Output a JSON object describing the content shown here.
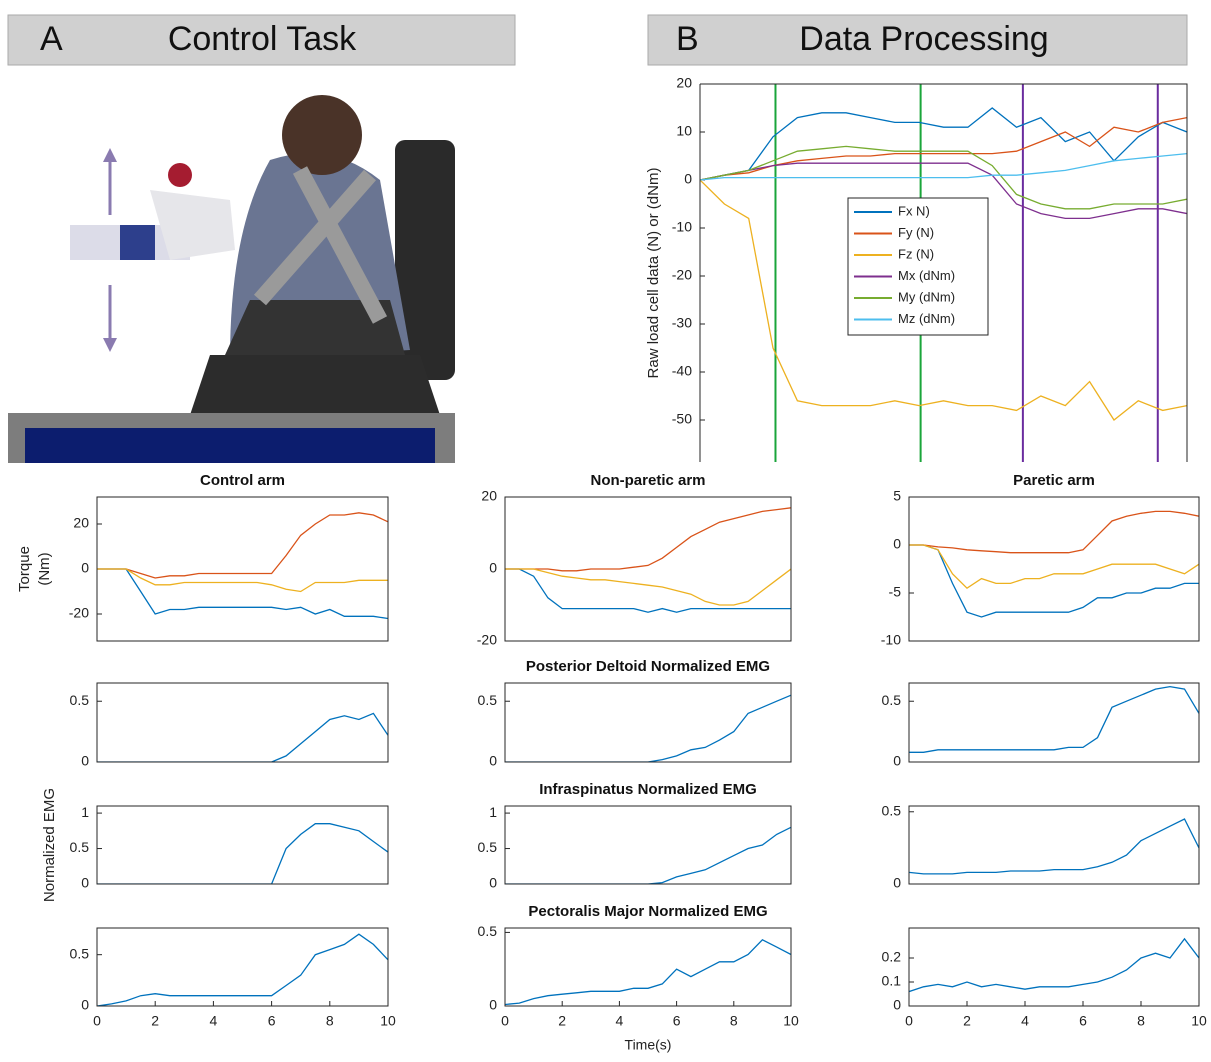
{
  "panels": [
    {
      "letter": "A",
      "title": "Control Task"
    },
    {
      "letter": "B",
      "title": "Data Processing"
    }
  ],
  "torque_ylabel": [
    "Torque",
    "(Nm)"
  ],
  "emg_ylabel": "Normalized EMG",
  "chart_data": [
    {
      "type": "line",
      "ylabel": "Raw load cell data (N) or (dNm)",
      "xlim": [
        0,
        10
      ],
      "ylim": [
        -58.75,
        20
      ],
      "yticks": [
        -50,
        -40,
        -30,
        -20,
        -10,
        0,
        10,
        20
      ],
      "legend": "center",
      "x": [
        0,
        0.5,
        1,
        1.5,
        2,
        2.5,
        3,
        3.5,
        4,
        4.5,
        5,
        5.5,
        6,
        6.5,
        7,
        7.5,
        8,
        8.5,
        9,
        9.5,
        10
      ],
      "vlines": [
        {
          "x": 1.55,
          "color": "#1aa53a"
        },
        {
          "x": 4.53,
          "color": "#1aa53a"
        },
        {
          "x": 6.63,
          "color": "#6a2c9e"
        },
        {
          "x": 9.4,
          "color": "#6a2c9e"
        }
      ],
      "series": [
        {
          "name": "Fx N)",
          "color": "#0072BD",
          "values": [
            0,
            1,
            2,
            9,
            13,
            14,
            14,
            13,
            12,
            12,
            11,
            11,
            15,
            11,
            13,
            8,
            10,
            4,
            9,
            12,
            10
          ]
        },
        {
          "name": "Fy (N)",
          "color": "#D95319",
          "values": [
            0,
            1,
            1.5,
            3,
            4,
            4.5,
            5,
            5,
            5.5,
            5.5,
            5.5,
            5.5,
            5.5,
            6,
            8,
            10,
            7,
            11,
            10,
            12,
            13
          ]
        },
        {
          "name": "Fz (N)",
          "color": "#EDB120",
          "values": [
            0,
            -5,
            -8,
            -35,
            -46,
            -47,
            -47,
            -47,
            -46,
            -47,
            -46,
            -47,
            -47,
            -48,
            -45,
            -47,
            -42,
            -50,
            -46,
            -48,
            -47
          ]
        },
        {
          "name": "Mx (dNm)",
          "color": "#7E2F8E",
          "values": [
            0,
            1,
            2,
            3,
            3.5,
            3.5,
            3.5,
            3.5,
            3.5,
            3.5,
            3.5,
            3.5,
            1,
            -5,
            -7,
            -8,
            -8,
            -7,
            -6,
            -6,
            -7
          ]
        },
        {
          "name": "My (dNm)",
          "color": "#77AC30",
          "values": [
            0,
            1,
            2,
            4,
            6,
            6.5,
            7,
            6.5,
            6,
            6,
            6,
            6,
            3,
            -3,
            -5,
            -6,
            -6,
            -5,
            -5,
            -5,
            -4
          ]
        },
        {
          "name": "Mz (dNm)",
          "color": "#4DBEEE",
          "values": [
            0,
            0.5,
            0.5,
            0.5,
            0.5,
            0.5,
            0.5,
            0.5,
            0.5,
            0.5,
            0.5,
            0.5,
            1,
            1,
            1.5,
            2,
            3,
            4,
            4.5,
            5,
            5.5
          ]
        }
      ]
    },
    {
      "type": "line",
      "title": "Control arm",
      "xlim": [
        0,
        10
      ],
      "ylim": [
        -32,
        32
      ],
      "yticks": [
        -20,
        0,
        20
      ],
      "x": [
        0,
        0.5,
        1,
        1.5,
        2,
        2.5,
        3,
        3.5,
        4,
        4.5,
        5,
        5.5,
        6,
        6.5,
        7,
        7.5,
        8,
        8.5,
        9,
        9.5,
        10
      ],
      "series": [
        {
          "color": "#0072BD",
          "values": [
            0,
            0,
            0,
            -10,
            -20,
            -18,
            -18,
            -17,
            -17,
            -17,
            -17,
            -17,
            -17,
            -18,
            -17,
            -20,
            -18,
            -21,
            -21,
            -21,
            -22
          ]
        },
        {
          "color": "#D95319",
          "values": [
            0,
            0,
            0,
            -2,
            -4,
            -3,
            -3,
            -2,
            -2,
            -2,
            -2,
            -2,
            -2,
            6,
            15,
            20,
            24,
            24,
            25,
            24,
            21
          ]
        },
        {
          "color": "#EDB120",
          "values": [
            0,
            0,
            0,
            -4,
            -7,
            -7,
            -6,
            -6,
            -6,
            -6,
            -6,
            -6,
            -7,
            -9,
            -10,
            -6,
            -6,
            -6,
            -5,
            -5,
            -5
          ]
        }
      ]
    },
    {
      "type": "line",
      "title": "Non-paretic arm",
      "xlim": [
        0,
        10
      ],
      "ylim": [
        -20,
        20
      ],
      "yticks": [
        -20,
        0,
        20
      ],
      "x": [
        0,
        0.5,
        1,
        1.5,
        2,
        2.5,
        3,
        3.5,
        4,
        4.5,
        5,
        5.5,
        6,
        6.5,
        7,
        7.5,
        8,
        8.5,
        9,
        9.5,
        10
      ],
      "series": [
        {
          "color": "#0072BD",
          "values": [
            0,
            0,
            -2,
            -8,
            -11,
            -11,
            -11,
            -11,
            -11,
            -11,
            -12,
            -11,
            -12,
            -11,
            -11,
            -11,
            -11,
            -11,
            -11,
            -11,
            -11
          ]
        },
        {
          "color": "#D95319",
          "values": [
            0,
            0,
            0,
            0,
            -0.5,
            -0.5,
            0,
            0,
            0,
            0.5,
            1,
            3,
            6,
            9,
            11,
            13,
            14,
            15,
            16,
            16.5,
            17
          ]
        },
        {
          "color": "#EDB120",
          "values": [
            0,
            0,
            0,
            -1,
            -2,
            -2.5,
            -3,
            -3,
            -3.5,
            -4,
            -4.5,
            -5,
            -6,
            -7,
            -9,
            -10,
            -10,
            -9,
            -6,
            -3,
            0
          ]
        }
      ]
    },
    {
      "type": "line",
      "title": "Paretic arm",
      "xlim": [
        0,
        10
      ],
      "ylim": [
        -10,
        5
      ],
      "yticks": [
        -10,
        -5,
        0,
        5
      ],
      "x": [
        0,
        0.5,
        1,
        1.5,
        2,
        2.5,
        3,
        3.5,
        4,
        4.5,
        5,
        5.5,
        6,
        6.5,
        7,
        7.5,
        8,
        8.5,
        9,
        9.5,
        10
      ],
      "series": [
        {
          "color": "#0072BD",
          "values": [
            0,
            0,
            -0.5,
            -4,
            -7,
            -7.5,
            -7,
            -7,
            -7,
            -7,
            -7,
            -7,
            -6.5,
            -5.5,
            -5.5,
            -5,
            -5,
            -4.5,
            -4.5,
            -4,
            -4
          ]
        },
        {
          "color": "#D95319",
          "values": [
            0,
            0,
            -0.2,
            -0.3,
            -0.5,
            -0.6,
            -0.7,
            -0.8,
            -0.8,
            -0.8,
            -0.8,
            -0.8,
            -0.5,
            1,
            2.5,
            3,
            3.3,
            3.5,
            3.5,
            3.3,
            3
          ]
        },
        {
          "color": "#EDB120",
          "values": [
            0,
            0,
            -0.5,
            -3,
            -4.5,
            -3.5,
            -4,
            -4,
            -3.5,
            -3.5,
            -3,
            -3,
            -3,
            -2.5,
            -2,
            -2,
            -2,
            -2,
            -2.5,
            -3,
            -2
          ]
        }
      ]
    },
    {
      "type": "line",
      "xlim": [
        0,
        10
      ],
      "ylim": [
        0,
        0.65
      ],
      "yticks": [
        0,
        0.5
      ],
      "x": [
        0,
        0.5,
        1,
        1.5,
        2,
        2.5,
        3,
        3.5,
        4,
        4.5,
        5,
        5.5,
        6,
        6.5,
        7,
        7.5,
        8,
        8.5,
        9,
        9.5,
        10
      ],
      "series": [
        {
          "color": "#0072BD",
          "values": [
            0,
            0,
            0,
            0,
            0,
            0,
            0,
            0,
            0,
            0,
            0,
            0,
            0,
            0.05,
            0.15,
            0.25,
            0.35,
            0.38,
            0.35,
            0.4,
            0.22
          ]
        }
      ]
    },
    {
      "type": "line",
      "title": "Posterior Deltoid Normalized EMG",
      "xlim": [
        0,
        10
      ],
      "ylim": [
        0,
        0.65
      ],
      "yticks": [
        0,
        0.5
      ],
      "x": [
        0,
        0.5,
        1,
        1.5,
        2,
        2.5,
        3,
        3.5,
        4,
        4.5,
        5,
        5.5,
        6,
        6.5,
        7,
        7.5,
        8,
        8.5,
        9,
        9.5,
        10
      ],
      "series": [
        {
          "color": "#0072BD",
          "values": [
            0,
            0,
            0,
            0,
            0,
            0,
            0,
            0,
            0,
            0,
            0,
            0.02,
            0.05,
            0.1,
            0.12,
            0.18,
            0.25,
            0.4,
            0.45,
            0.5,
            0.55
          ]
        }
      ]
    },
    {
      "type": "line",
      "xlim": [
        0,
        10
      ],
      "ylim": [
        0,
        0.65
      ],
      "yticks": [
        0,
        0.5
      ],
      "x": [
        0,
        0.5,
        1,
        1.5,
        2,
        2.5,
        3,
        3.5,
        4,
        4.5,
        5,
        5.5,
        6,
        6.5,
        7,
        7.5,
        8,
        8.5,
        9,
        9.5,
        10
      ],
      "series": [
        {
          "color": "#0072BD",
          "values": [
            0.08,
            0.08,
            0.1,
            0.1,
            0.1,
            0.1,
            0.1,
            0.1,
            0.1,
            0.1,
            0.1,
            0.12,
            0.12,
            0.2,
            0.45,
            0.5,
            0.55,
            0.6,
            0.62,
            0.6,
            0.4
          ]
        }
      ]
    },
    {
      "type": "line",
      "xlim": [
        0,
        10
      ],
      "ylim": [
        0,
        1.1
      ],
      "yticks": [
        0,
        0.5,
        1
      ],
      "x": [
        0,
        0.5,
        1,
        1.5,
        2,
        2.5,
        3,
        3.5,
        4,
        4.5,
        5,
        5.5,
        6,
        6.5,
        7,
        7.5,
        8,
        8.5,
        9,
        9.5,
        10
      ],
      "series": [
        {
          "color": "#0072BD",
          "values": [
            0,
            0,
            0,
            0,
            0,
            0,
            0,
            0,
            0,
            0,
            0,
            0,
            0,
            0.5,
            0.7,
            0.85,
            0.85,
            0.8,
            0.75,
            0.6,
            0.45
          ]
        }
      ]
    },
    {
      "type": "line",
      "title": "Infraspinatus Normalized EMG",
      "xlim": [
        0,
        10
      ],
      "ylim": [
        0,
        1.1
      ],
      "yticks": [
        0,
        0.5,
        1
      ],
      "x": [
        0,
        0.5,
        1,
        1.5,
        2,
        2.5,
        3,
        3.5,
        4,
        4.5,
        5,
        5.5,
        6,
        6.5,
        7,
        7.5,
        8,
        8.5,
        9,
        9.5,
        10
      ],
      "series": [
        {
          "color": "#0072BD",
          "values": [
            0,
            0,
            0,
            0,
            0,
            0,
            0,
            0,
            0,
            0,
            0,
            0.02,
            0.1,
            0.15,
            0.2,
            0.3,
            0.4,
            0.5,
            0.55,
            0.7,
            0.8
          ]
        }
      ]
    },
    {
      "type": "line",
      "xlim": [
        0,
        10
      ],
      "ylim": [
        0,
        0.54
      ],
      "yticks": [
        0,
        0.5
      ],
      "x": [
        0,
        0.5,
        1,
        1.5,
        2,
        2.5,
        3,
        3.5,
        4,
        4.5,
        5,
        5.5,
        6,
        6.5,
        7,
        7.5,
        8,
        8.5,
        9,
        9.5,
        10
      ],
      "series": [
        {
          "color": "#0072BD",
          "values": [
            0.08,
            0.07,
            0.07,
            0.07,
            0.08,
            0.08,
            0.08,
            0.09,
            0.09,
            0.09,
            0.1,
            0.1,
            0.1,
            0.12,
            0.15,
            0.2,
            0.3,
            0.35,
            0.4,
            0.45,
            0.25
          ]
        }
      ]
    },
    {
      "type": "line",
      "xlim": [
        0,
        10
      ],
      "ylim": [
        0,
        0.76
      ],
      "yticks": [
        0,
        0.5
      ],
      "xticks": [
        0,
        2,
        4,
        6,
        8,
        10
      ],
      "x": [
        0,
        0.5,
        1,
        1.5,
        2,
        2.5,
        3,
        3.5,
        4,
        4.5,
        5,
        5.5,
        6,
        6.5,
        7,
        7.5,
        8,
        8.5,
        9,
        9.5,
        10
      ],
      "series": [
        {
          "color": "#0072BD",
          "values": [
            0,
            0.02,
            0.05,
            0.1,
            0.12,
            0.1,
            0.1,
            0.1,
            0.1,
            0.1,
            0.1,
            0.1,
            0.1,
            0.2,
            0.3,
            0.5,
            0.55,
            0.6,
            0.7,
            0.6,
            0.45
          ]
        }
      ]
    },
    {
      "type": "line",
      "title": "Pectoralis Major Normalized EMG",
      "xlabel": "Time(s)",
      "xlim": [
        0,
        10
      ],
      "ylim": [
        0,
        0.53
      ],
      "yticks": [
        0,
        0.5
      ],
      "xticks": [
        0,
        2,
        4,
        6,
        8,
        10
      ],
      "x": [
        0,
        0.5,
        1,
        1.5,
        2,
        2.5,
        3,
        3.5,
        4,
        4.5,
        5,
        5.5,
        6,
        6.5,
        7,
        7.5,
        8,
        8.5,
        9,
        9.5,
        10
      ],
      "series": [
        {
          "color": "#0072BD",
          "values": [
            0.01,
            0.02,
            0.05,
            0.07,
            0.08,
            0.09,
            0.1,
            0.1,
            0.1,
            0.12,
            0.12,
            0.15,
            0.25,
            0.2,
            0.25,
            0.3,
            0.3,
            0.35,
            0.45,
            0.4,
            0.35
          ]
        }
      ]
    },
    {
      "type": "line",
      "xlim": [
        0,
        10
      ],
      "ylim": [
        0,
        0.325
      ],
      "yticks": [
        0,
        0.1,
        0.2
      ],
      "xticks": [
        0,
        2,
        4,
        6,
        8,
        10
      ],
      "x": [
        0,
        0.5,
        1,
        1.5,
        2,
        2.5,
        3,
        3.5,
        4,
        4.5,
        5,
        5.5,
        6,
        6.5,
        7,
        7.5,
        8,
        8.5,
        9,
        9.5,
        10
      ],
      "series": [
        {
          "color": "#0072BD",
          "values": [
            0.06,
            0.08,
            0.09,
            0.08,
            0.1,
            0.08,
            0.09,
            0.08,
            0.07,
            0.08,
            0.08,
            0.08,
            0.09,
            0.1,
            0.12,
            0.15,
            0.2,
            0.22,
            0.2,
            0.28,
            0.2
          ]
        }
      ]
    }
  ]
}
